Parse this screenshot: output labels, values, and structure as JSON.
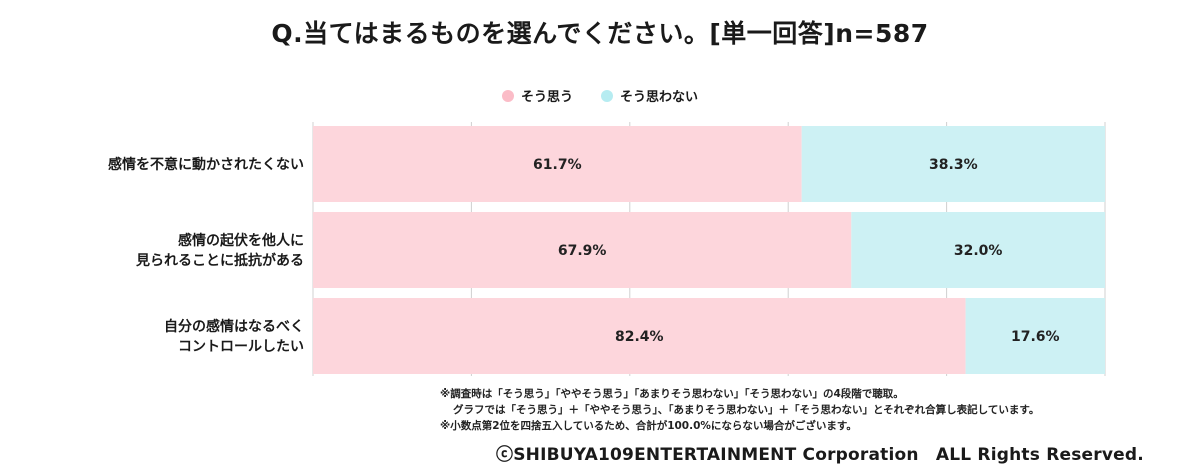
{
  "title": "Q.当てはまるものを選んでください。[単一回答]n=587",
  "colors": {
    "agree": "#fdd6dc",
    "disagree": "#cdf1f4",
    "grid": "#d0d0d0",
    "legend_agree": "#fbbcc7",
    "legend_disagree": "#b6ecf1"
  },
  "chart_data": {
    "type": "bar",
    "orientation": "horizontal",
    "stacked": true,
    "categories": [
      "感情を不意に動かされたくない",
      "感情の起伏を他人に\n見られることに抵抗がある",
      "自分の感情はなるべく\nコントロールしたい"
    ],
    "series": [
      {
        "name": "そう思う",
        "values": [
          61.7,
          67.9,
          82.4
        ],
        "labels": [
          "61.7%",
          "67.9%",
          "82.4%"
        ]
      },
      {
        "name": "そう思わない",
        "values": [
          38.3,
          32.0,
          17.6
        ],
        "labels": [
          "38.3%",
          "32.0%",
          "17.6%"
        ]
      }
    ],
    "xlim": [
      0,
      100
    ],
    "grid": true,
    "legend_position": "top-center"
  },
  "notes": [
    "※調査時は「そう思う」「ややそう思う」「あまりそう思わない」「そう思わない」の4段階で聴取。",
    "グラフでは「そう思う」＋「ややそう思う」、「あまりそう思わない」＋「そう思わない」とそれぞれ合算し表記しています。",
    "※小数点第2位を四捨五入しているため、合計が100.0%にならない場合がございます。"
  ],
  "copyright": "ⓒSHIBUYA109ENTERTAINMENT Corporation　ALL Rights Reserved."
}
